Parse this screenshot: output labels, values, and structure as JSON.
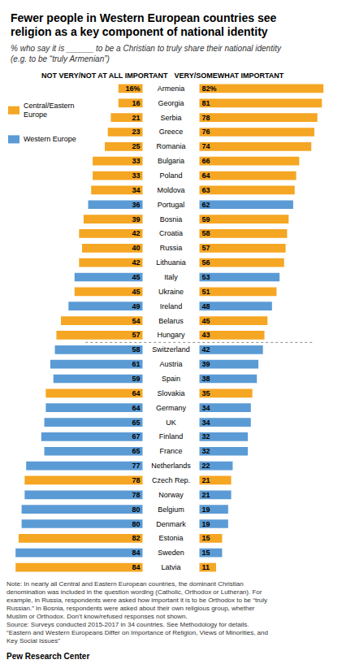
{
  "chart_data": {
    "type": "bar",
    "orientation": "horizontal",
    "title": "Fewer people in Western European countries see\nreligion as a key component of national identity",
    "subtitle": "% who say it is ______ to be a Christian to truly share their national identity\n(e.g. to be “truly Armenian”)",
    "note": "Note: In nearly all Central and Eastern European countries, the dominant Christian\ndenomination was included in the question wording (Catholic, Orthodox or Lutheran). For\nexample, in Russia, respondents were asked how important it is to be Orthodox to be “truly\nRussian.” In Bosnia, respondents were asked about their own religious group, whether\nMuslim or Orthodox. Don’t know/refused responses not shown.\nSource: Surveys conducted 2015-2017 in 34 countries. See Methodology for details.\n“Eastern and Western Europeans Differ on Importance of Religion, Views of Minorities, and\nKey Social Issues”",
    "source_label": "Pew Research Center",
    "categories": [
      "Armenia",
      "Georgia",
      "Serbia",
      "Greece",
      "Romania",
      "Bulgaria",
      "Poland",
      "Moldova",
      "Portugal",
      "Bosnia",
      "Croatia",
      "Russia",
      "Lithuania",
      "Italy",
      "Ukraine",
      "Ireland",
      "Belarus",
      "Hungary",
      "Switzerland",
      "Austria",
      "Spain",
      "Slovakia",
      "Germany",
      "UK",
      "Finland",
      "France",
      "Netherlands",
      "Czech Rep.",
      "Norway",
      "Belgium",
      "Denmark",
      "Estonia",
      "Sweden",
      "Latvia"
    ],
    "series": [
      {
        "name": "NOT VERY/NOT AT ALL IMPORTANT",
        "values": [
          16,
          16,
          21,
          23,
          25,
          33,
          33,
          34,
          36,
          39,
          42,
          40,
          42,
          45,
          45,
          49,
          54,
          57,
          58,
          61,
          59,
          64,
          64,
          65,
          67,
          65,
          77,
          78,
          78,
          80,
          80,
          82,
          84,
          84
        ],
        "value_labels": [
          "16%",
          "16",
          "21",
          "23",
          "25",
          "33",
          "33",
          "34",
          "36",
          "39",
          "42",
          "40",
          "42",
          "45",
          "45",
          "49",
          "54",
          "57",
          "58",
          "61",
          "59",
          "64",
          "64",
          "65",
          "67",
          "65",
          "77",
          "78",
          "78",
          "80",
          "80",
          "82",
          "84",
          "84"
        ]
      },
      {
        "name": "VERY/SOMEWHAT IMPORTANT",
        "values": [
          82,
          81,
          78,
          76,
          74,
          66,
          64,
          63,
          62,
          59,
          58,
          57,
          56,
          53,
          51,
          48,
          45,
          43,
          42,
          39,
          38,
          35,
          34,
          34,
          32,
          32,
          22,
          21,
          21,
          19,
          19,
          15,
          15,
          11
        ],
        "value_labels": [
          "82%",
          "81",
          "78",
          "76",
          "74",
          "66",
          "64",
          "63",
          "62",
          "59",
          "58",
          "57",
          "56",
          "53",
          "51",
          "48",
          "45",
          "43",
          "42",
          "39",
          "38",
          "35",
          "34",
          "34",
          "32",
          "32",
          "22",
          "21",
          "21",
          "19",
          "19",
          "15",
          "15",
          "11"
        ]
      }
    ],
    "colors": [
      "#F5A623",
      "#F5A623",
      "#F5A623",
      "#F5A623",
      "#F5A623",
      "#F5A623",
      "#F5A623",
      "#F5A623",
      "#5B9BD5",
      "#F5A623",
      "#F5A623",
      "#F5A623",
      "#F5A623",
      "#5B9BD5",
      "#F5A623",
      "#5B9BD5",
      "#F5A623",
      "#F5A623",
      "#5B9BD5",
      "#5B9BD5",
      "#5B9BD5",
      "#F5A623",
      "#5B9BD5",
      "#5B9BD5",
      "#5B9BD5",
      "#5B9BD5",
      "#5B9BD5",
      "#F5A623",
      "#5B9BD5",
      "#5B9BD5",
      "#5B9BD5",
      "#F5A623",
      "#5B9BD5",
      "#F5A623"
    ],
    "color_legend": [
      {
        "name": "Central/Eastern\nEurope",
        "color": "#F5A623"
      },
      {
        "name": "Western Europe",
        "color": "#5B9BD5"
      }
    ],
    "legend": "upper left",
    "divider_after": "Hungary",
    "xlim": [
      0,
      90
    ],
    "data_labels": true,
    "tick_labels": "y",
    "grid": false
  }
}
